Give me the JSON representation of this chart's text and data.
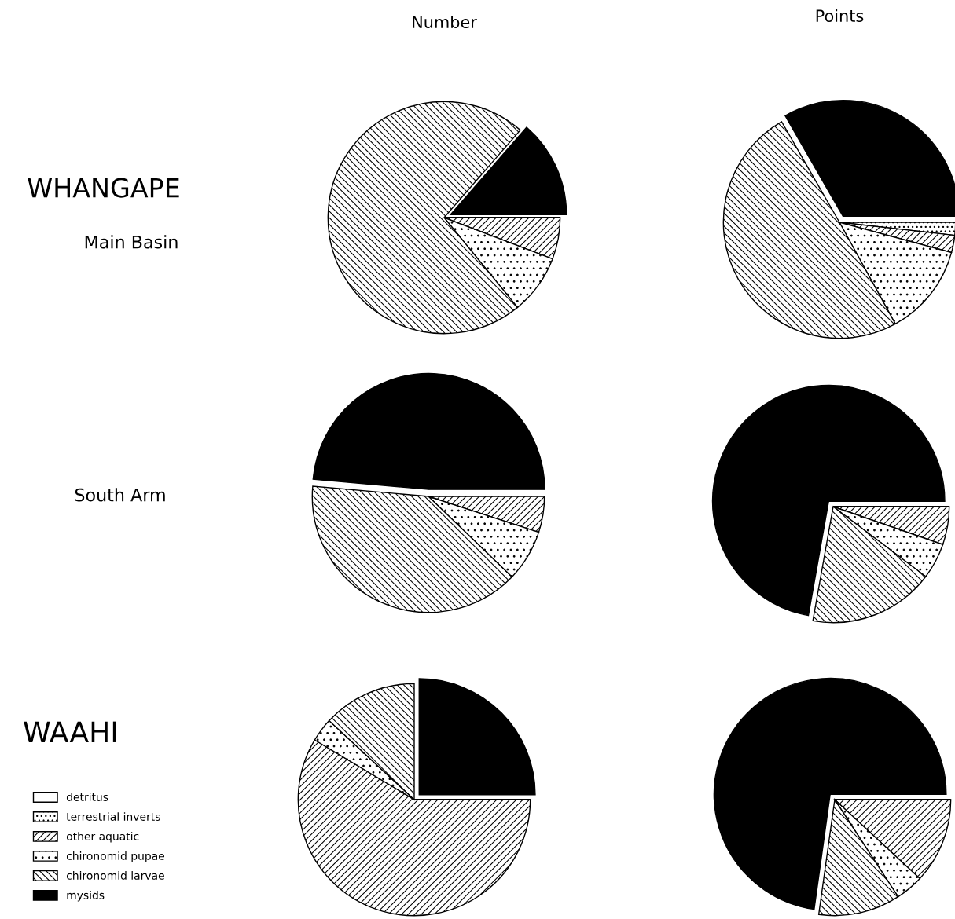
{
  "chart_data": [
    {
      "type": "pie",
      "title": "Number",
      "annotations": [
        "WHANGAPE",
        "Main Basin"
      ],
      "legend": "bottom left",
      "categories": [
        "detritus",
        "terrestrial inverts",
        "other aquatic",
        "chironomid pupae",
        "chironomid larvae",
        "mysids"
      ],
      "values": [
        0,
        0,
        5.8,
        8.3,
        72.3,
        13.6
      ]
    },
    {
      "type": "pie",
      "title": "Points",
      "categories": [
        null,
        null,
        null,
        null,
        null,
        null
      ],
      "values": [
        0,
        1.8,
        2.4,
        12.8,
        49.7,
        33.3
      ]
    },
    {
      "type": "pie",
      "annotations": [
        "South Arm"
      ],
      "categories": [
        null,
        null,
        null,
        null,
        null,
        null
      ],
      "values": [
        0,
        0,
        5.0,
        7.2,
        39.2,
        48.6
      ]
    },
    {
      "type": "pie",
      "categories": [
        null,
        null,
        null,
        null,
        null,
        null
      ],
      "values": [
        0,
        0,
        5.3,
        5.0,
        17.5,
        72.2
      ]
    },
    {
      "type": "pie",
      "annotations": [
        "WAAHI"
      ],
      "categories": [
        null,
        null,
        null,
        null,
        null,
        null
      ],
      "values": [
        0,
        0,
        58.6,
        3.3,
        13.1,
        25.0
      ]
    },
    {
      "type": "pie",
      "categories": [
        null,
        null,
        null,
        null,
        null,
        null
      ],
      "values": [
        0,
        0,
        11.9,
        3.9,
        11.4,
        72.8
      ]
    }
  ]
}
